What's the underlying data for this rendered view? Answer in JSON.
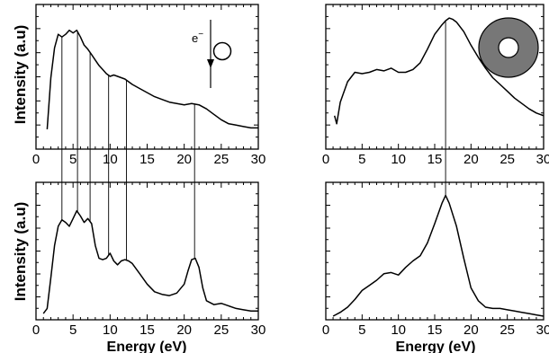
{
  "chart_data": [
    {
      "id": "top-left",
      "type": "line",
      "xlabel": "",
      "ylabel": "Intensity (a.u)",
      "xlim": [
        0,
        30
      ],
      "xticks": [
        0,
        5,
        10,
        15,
        20,
        25,
        30
      ],
      "tick_labels": [
        "0",
        "5",
        "10",
        "15",
        "20",
        "25",
        "30"
      ],
      "annotation": "e",
      "annotation_superscript": "−",
      "points": [
        [
          1.5,
          0.12
        ],
        [
          2.0,
          0.5
        ],
        [
          2.5,
          0.72
        ],
        [
          3.0,
          0.82
        ],
        [
          3.5,
          0.8
        ],
        [
          4.0,
          0.82
        ],
        [
          4.5,
          0.85
        ],
        [
          5.0,
          0.83
        ],
        [
          5.5,
          0.85
        ],
        [
          6.0,
          0.8
        ],
        [
          6.5,
          0.74
        ],
        [
          7.0,
          0.71
        ],
        [
          7.5,
          0.67
        ],
        [
          8.0,
          0.63
        ],
        [
          8.5,
          0.59
        ],
        [
          9.0,
          0.56
        ],
        [
          9.5,
          0.53
        ],
        [
          10.0,
          0.51
        ],
        [
          10.5,
          0.52
        ],
        [
          11.0,
          0.51
        ],
        [
          11.5,
          0.5
        ],
        [
          12.0,
          0.49
        ],
        [
          12.5,
          0.47
        ],
        [
          13.0,
          0.45
        ],
        [
          14.0,
          0.42
        ],
        [
          15.0,
          0.39
        ],
        [
          16.0,
          0.36
        ],
        [
          17.0,
          0.34
        ],
        [
          18.0,
          0.32
        ],
        [
          19.0,
          0.31
        ],
        [
          20.0,
          0.3
        ],
        [
          21.0,
          0.31
        ],
        [
          22.0,
          0.3
        ],
        [
          23.0,
          0.27
        ],
        [
          24.0,
          0.23
        ],
        [
          25.0,
          0.19
        ],
        [
          26.0,
          0.16
        ],
        [
          27.0,
          0.15
        ],
        [
          28.0,
          0.14
        ],
        [
          29.0,
          0.13
        ],
        [
          30.0,
          0.13
        ]
      ]
    },
    {
      "id": "top-right",
      "type": "line",
      "xlabel": "",
      "ylabel": "",
      "xlim": [
        0,
        30
      ],
      "xticks": [
        0,
        5,
        10,
        15,
        20,
        25,
        30
      ],
      "tick_labels": [
        "0",
        "5",
        "10",
        "15",
        "20",
        "25",
        "30"
      ],
      "points": [
        [
          1.2,
          0.22
        ],
        [
          1.5,
          0.16
        ],
        [
          2.0,
          0.32
        ],
        [
          3.0,
          0.47
        ],
        [
          4.0,
          0.54
        ],
        [
          5.0,
          0.53
        ],
        [
          6.0,
          0.54
        ],
        [
          7.0,
          0.56
        ],
        [
          8.0,
          0.55
        ],
        [
          9.0,
          0.57
        ],
        [
          10.0,
          0.54
        ],
        [
          11.0,
          0.54
        ],
        [
          12.0,
          0.56
        ],
        [
          13.0,
          0.61
        ],
        [
          14.0,
          0.71
        ],
        [
          15.0,
          0.82
        ],
        [
          16.0,
          0.89
        ],
        [
          16.5,
          0.92
        ],
        [
          17.0,
          0.94
        ],
        [
          17.5,
          0.93
        ],
        [
          18.0,
          0.91
        ],
        [
          19.0,
          0.84
        ],
        [
          20.0,
          0.74
        ],
        [
          21.0,
          0.65
        ],
        [
          22.0,
          0.57
        ],
        [
          23.0,
          0.5
        ],
        [
          24.0,
          0.45
        ],
        [
          25.0,
          0.4
        ],
        [
          26.0,
          0.35
        ],
        [
          27.0,
          0.31
        ],
        [
          28.0,
          0.27
        ],
        [
          29.0,
          0.24
        ],
        [
          30.0,
          0.22
        ]
      ]
    },
    {
      "id": "bottom-left",
      "type": "line",
      "xlabel": "Energy (eV)",
      "ylabel": "Intensity (a.u)",
      "xlim": [
        0,
        30
      ],
      "xticks": [
        0,
        5,
        10,
        15,
        20,
        25,
        30
      ],
      "tick_labels": [
        "0",
        "5",
        "10",
        "15",
        "20",
        "25",
        "30"
      ],
      "points": [
        [
          1.0,
          0.02
        ],
        [
          1.5,
          0.06
        ],
        [
          2.0,
          0.3
        ],
        [
          2.5,
          0.55
        ],
        [
          3.0,
          0.7
        ],
        [
          3.5,
          0.75
        ],
        [
          4.0,
          0.73
        ],
        [
          4.5,
          0.7
        ],
        [
          5.0,
          0.76
        ],
        [
          5.5,
          0.82
        ],
        [
          6.0,
          0.78
        ],
        [
          6.5,
          0.73
        ],
        [
          7.0,
          0.76
        ],
        [
          7.5,
          0.72
        ],
        [
          8.0,
          0.55
        ],
        [
          8.5,
          0.45
        ],
        [
          9.0,
          0.44
        ],
        [
          9.5,
          0.45
        ],
        [
          10.0,
          0.49
        ],
        [
          10.5,
          0.43
        ],
        [
          11.0,
          0.4
        ],
        [
          11.5,
          0.43
        ],
        [
          12.0,
          0.44
        ],
        [
          12.5,
          0.43
        ],
        [
          13.0,
          0.41
        ],
        [
          14.0,
          0.33
        ],
        [
          15.0,
          0.25
        ],
        [
          16.0,
          0.19
        ],
        [
          17.0,
          0.17
        ],
        [
          18.0,
          0.16
        ],
        [
          19.0,
          0.18
        ],
        [
          20.0,
          0.25
        ],
        [
          20.5,
          0.35
        ],
        [
          21.0,
          0.44
        ],
        [
          21.5,
          0.45
        ],
        [
          22.0,
          0.38
        ],
        [
          22.5,
          0.22
        ],
        [
          23.0,
          0.12
        ],
        [
          24.0,
          0.09
        ],
        [
          25.0,
          0.1
        ],
        [
          26.0,
          0.08
        ],
        [
          27.0,
          0.06
        ],
        [
          28.0,
          0.05
        ],
        [
          29.0,
          0.04
        ],
        [
          30.0,
          0.04
        ]
      ]
    },
    {
      "id": "bottom-right",
      "type": "line",
      "xlabel": "Energy (eV)",
      "ylabel": "",
      "xlim": [
        0,
        30
      ],
      "xticks": [
        0,
        5,
        10,
        15,
        20,
        25,
        30
      ],
      "tick_labels": [
        "0",
        "5",
        "10",
        "15",
        "20",
        "25",
        "30"
      ],
      "points": [
        [
          1.0,
          0.0
        ],
        [
          2.0,
          0.03
        ],
        [
          3.0,
          0.07
        ],
        [
          4.0,
          0.13
        ],
        [
          5.0,
          0.2
        ],
        [
          6.0,
          0.24
        ],
        [
          7.0,
          0.28
        ],
        [
          8.0,
          0.33
        ],
        [
          9.0,
          0.34
        ],
        [
          10.0,
          0.32
        ],
        [
          11.0,
          0.38
        ],
        [
          12.0,
          0.43
        ],
        [
          13.0,
          0.47
        ],
        [
          14.0,
          0.57
        ],
        [
          15.0,
          0.72
        ],
        [
          16.0,
          0.88
        ],
        [
          16.5,
          0.94
        ],
        [
          17.0,
          0.88
        ],
        [
          18.0,
          0.7
        ],
        [
          19.0,
          0.45
        ],
        [
          20.0,
          0.22
        ],
        [
          21.0,
          0.12
        ],
        [
          22.0,
          0.07
        ],
        [
          23.0,
          0.06
        ],
        [
          24.0,
          0.06
        ],
        [
          25.0,
          0.05
        ],
        [
          26.0,
          0.04
        ],
        [
          27.0,
          0.03
        ],
        [
          28.0,
          0.02
        ],
        [
          29.0,
          0.01
        ],
        [
          30.0,
          0.0
        ]
      ]
    }
  ],
  "connectors": {
    "left_energies": [
      3.5,
      5.6,
      7.3,
      9.8,
      12.2,
      21.4
    ],
    "right_energies": [
      16.5
    ]
  },
  "colors": {
    "line": "#000000",
    "ring_fill": "#777777",
    "background": "#ffffff"
  },
  "icons": [
    "electron-arrow-icon",
    "hollow-circle-icon",
    "gray-ring-icon"
  ]
}
